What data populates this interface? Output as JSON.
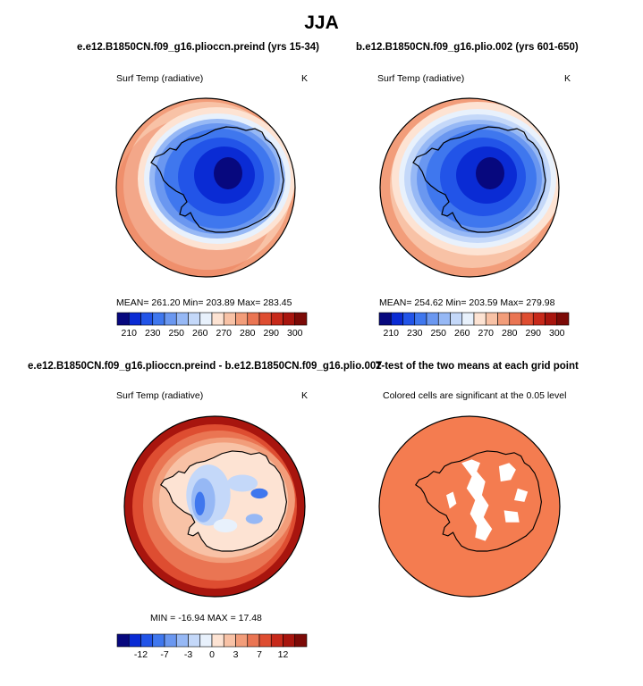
{
  "page_title": "JJA",
  "colors": {
    "temp_scale": [
      "#07087e",
      "#0a2bd4",
      "#2254e8",
      "#3f77ee",
      "#6a97f0",
      "#96b8f5",
      "#c4d8f9",
      "#e8f1fc",
      "#fde3d3",
      "#f8c2a6",
      "#f29d7a",
      "#ea7553",
      "#de4d31",
      "#c7291a",
      "#a8150e",
      "#7c0a07"
    ],
    "diff_scale": [
      "#07087e",
      "#0a2bd4",
      "#2254e8",
      "#3f77ee",
      "#6a97f0",
      "#96b8f5",
      "#c4d8f9",
      "#e8f1fc",
      "#fde3d3",
      "#f8c2a6",
      "#f29d7a",
      "#ea7553",
      "#de4d31",
      "#c7291a",
      "#a8150e",
      "#7c0a07"
    ],
    "significance_fill": "#f47c50",
    "land_outline": "#000000"
  },
  "panels": {
    "p1": {
      "title": "e.e12.B1850CN.f09_g16.plioccn.preind (yrs 15-34)",
      "var_label": "Surf Temp (radiative)",
      "units": "K",
      "stats": "MEAN= 261.20   Min= 203.89   Max= 283.45"
    },
    "p2": {
      "title": "b.e12.B1850CN.f09_g16.plio.002 (yrs 601-650)",
      "var_label": "Surf Temp (radiative)",
      "units": "K",
      "stats": "MEAN= 254.62   Min= 203.59   Max= 279.98"
    },
    "p3": {
      "title": "e.e12.B1850CN.f09_g16.plioccn.preind - b.e12.B1850CN.f09_g16.plio.002",
      "var_label": "Surf Temp (radiative)",
      "units": "K",
      "stats": "MIN = -16.94   MAX = 17.48"
    },
    "p4": {
      "title": "T-test of the two means at each grid point",
      "var_label": "Colored cells are significant at the 0.05 level"
    }
  },
  "chart_data": [
    {
      "type": "heatmap",
      "title": "e.e12.B1850CN.f09_g16.plioccn.preind (yrs 15-34)",
      "variable": "Surf Temp (radiative)",
      "units": "K",
      "projection": "south polar stereographic",
      "mean": 261.2,
      "min": 203.89,
      "max": 283.45,
      "colorbar_ticks": [
        "210",
        "230",
        "250",
        "260",
        "270",
        "280",
        "290",
        "300"
      ],
      "colorbar_levels": [
        210,
        220,
        230,
        240,
        250,
        255,
        260,
        265,
        270,
        275,
        280,
        285,
        290,
        295,
        300
      ]
    },
    {
      "type": "heatmap",
      "title": "b.e12.B1850CN.f09_g16.plio.002 (yrs 601-650)",
      "variable": "Surf Temp (radiative)",
      "units": "K",
      "projection": "south polar stereographic",
      "mean": 254.62,
      "min": 203.59,
      "max": 279.98,
      "colorbar_ticks": [
        "210",
        "230",
        "250",
        "260",
        "270",
        "280",
        "290",
        "300"
      ],
      "colorbar_levels": [
        210,
        220,
        230,
        240,
        250,
        255,
        260,
        265,
        270,
        275,
        280,
        285,
        290,
        295,
        300
      ]
    },
    {
      "type": "heatmap",
      "title": "e.e12.B1850CN.f09_g16.plioccn.preind - b.e12.B1850CN.f09_g16.plio.002",
      "variable": "Surf Temp (radiative)",
      "units": "K",
      "projection": "south polar stereographic",
      "min": -16.94,
      "max": 17.48,
      "colorbar_ticks": [
        "-12",
        "-7",
        "-3",
        "0",
        "3",
        "7",
        "12"
      ],
      "colorbar_levels": [
        -15,
        -12,
        -10,
        -7,
        -5,
        -3,
        -1,
        0,
        1,
        3,
        5,
        7,
        10,
        12,
        15
      ]
    },
    {
      "type": "heatmap",
      "title": "T-test of the two means at each grid point",
      "note": "Colored cells are significant at the 0.05 level",
      "significance_level": 0.05
    }
  ]
}
